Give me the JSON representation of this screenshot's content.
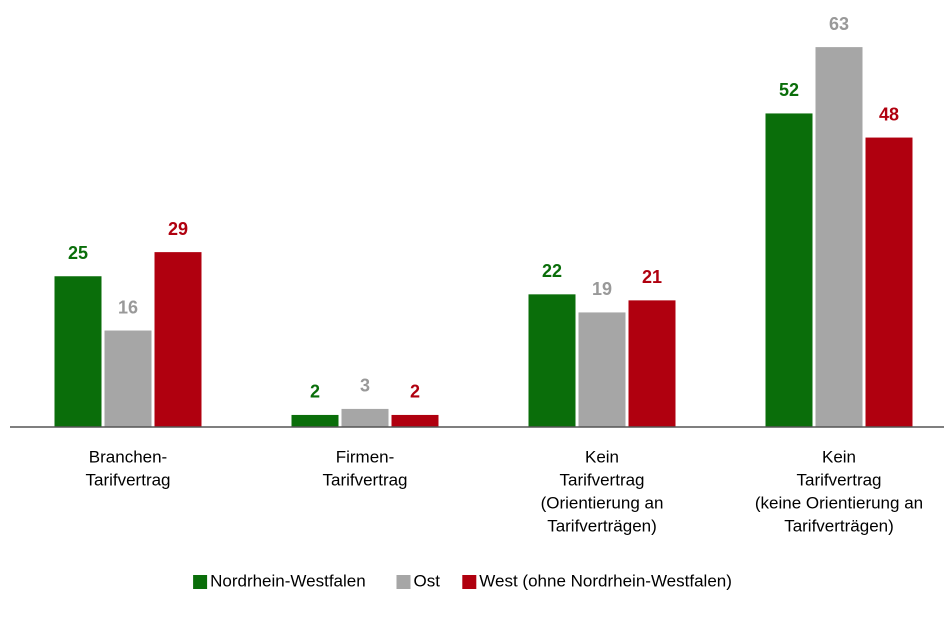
{
  "chart_data": {
    "type": "bar",
    "categories": [
      [
        "Branchen-",
        "Tarifvertrag"
      ],
      [
        "Firmen-",
        "Tarifvertrag"
      ],
      [
        "Kein",
        "Tarifvertrag",
        "(Orientierung an",
        "Tarifverträgen)"
      ],
      [
        "Kein",
        "Tarifvertrag",
        "(keine Orientierung an",
        "Tarifverträgen)"
      ]
    ],
    "series": [
      {
        "name": "Nordrhein-Westfalen",
        "color": "#0a6e0a",
        "values": [
          25,
          2,
          22,
          52
        ]
      },
      {
        "name": "Ost",
        "color": "#a6a6a6",
        "values": [
          16,
          3,
          19,
          63
        ]
      },
      {
        "name": "West (ohne Nordrhein-Westfalen)",
        "color": "#b0000f",
        "values": [
          29,
          2,
          21,
          48
        ]
      }
    ],
    "legend": "bottom"
  }
}
